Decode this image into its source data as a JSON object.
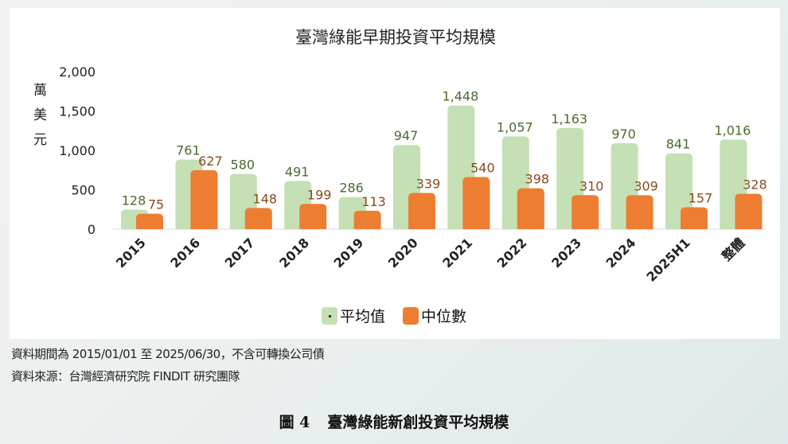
{
  "chart_data": {
    "type": "bar",
    "title": "臺灣綠能早期投資平均規模",
    "ylabel": "萬美元",
    "ylim": [
      0,
      2000
    ],
    "yticks": [
      "0",
      "500",
      "1,000",
      "1,500",
      "2,000"
    ],
    "ytick_values": [
      0,
      500,
      1000,
      1500,
      2000
    ],
    "categories": [
      "2015",
      "2016",
      "2017",
      "2018",
      "2019",
      "2020",
      "2021",
      "2022",
      "2023",
      "2024",
      "2025H1",
      "整體"
    ],
    "series": [
      {
        "name": "平均值",
        "color": "#c5e0b4",
        "label_color": "#4b6a2e",
        "values": [
          128,
          761,
          580,
          491,
          286,
          947,
          1448,
          1057,
          1163,
          970,
          841,
          1016
        ],
        "labels": [
          "128",
          "761",
          "580",
          "491",
          "286",
          "947",
          "1,448",
          "1,057",
          "1,163",
          "970",
          "841",
          "1,016"
        ]
      },
      {
        "name": "中位數",
        "color": "#ed7d31",
        "label_color": "#8a4a1c",
        "values": [
          75,
          627,
          148,
          199,
          113,
          339,
          540,
          398,
          310,
          309,
          157,
          328
        ],
        "labels": [
          "75",
          "627",
          "148",
          "199",
          "113",
          "339",
          "540",
          "398",
          "310",
          "309",
          "157",
          "328"
        ]
      }
    ],
    "legend": "bottom",
    "grid": false
  },
  "notes": [
    "資料期間為 2015/01/01 至 2025/06/30，不含可轉換公司債",
    "資料來源：台灣經濟研究院 FINDIT 研究團隊"
  ],
  "caption": {
    "number": "圖 4",
    "title": "臺灣綠能新創投資平均規模"
  }
}
